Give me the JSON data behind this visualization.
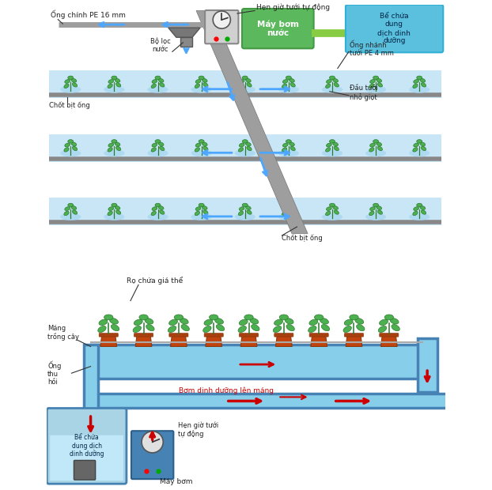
{
  "bg_color": "#ffffff",
  "diagram_A": {
    "bg_color": "#f5f0c8",
    "labels": {
      "ong_chinh": "Ống chính PE 16 mm",
      "bo_loc": "Bộ lọc\nnước",
      "hen_gio": "Hẹn giờ tưới tự động",
      "may_bom": "Máy bơm\nnước",
      "be_chua": "Bể chứa\ndung\ndịch dinh\ndưỡng",
      "ong_nhanh": "Ống nhánh\ntưới PE 4 mm",
      "dau_tuoi": "Đầu tưới\nnhỏ giọt",
      "chot_bit_1": "Chốt bịt ống",
      "chot_bit_2": "Chốt bịt ống"
    },
    "green_box_color": "#5cb85c",
    "blue_box_color": "#5bc0de",
    "pipe_color": "#9e9e9e",
    "arrow_color": "#4da6ff",
    "row_bg_color": "#c8e6f5"
  },
  "diagram_B": {
    "bg_color": "#ffffff",
    "labels": {
      "ro_chua": "Rọ chứa giá thể",
      "mang_trong": "Máng\ntrồng cây",
      "ong_thu": "Ống\nthu\nhồi",
      "bom_dinh_duong": "Bơm dinh dưỡng lên máng",
      "be_chua": "Bể chứa\ndung dịch\ndinh dưỡng",
      "hen_gio": "Hẹn giờ tưới\ntự động",
      "may_bom": "Máy bơm"
    },
    "trough_color": "#87ceeb",
    "trough_dark": "#4682b4",
    "pot_color": "#c1440e",
    "arrow_red": "#cc0000"
  }
}
